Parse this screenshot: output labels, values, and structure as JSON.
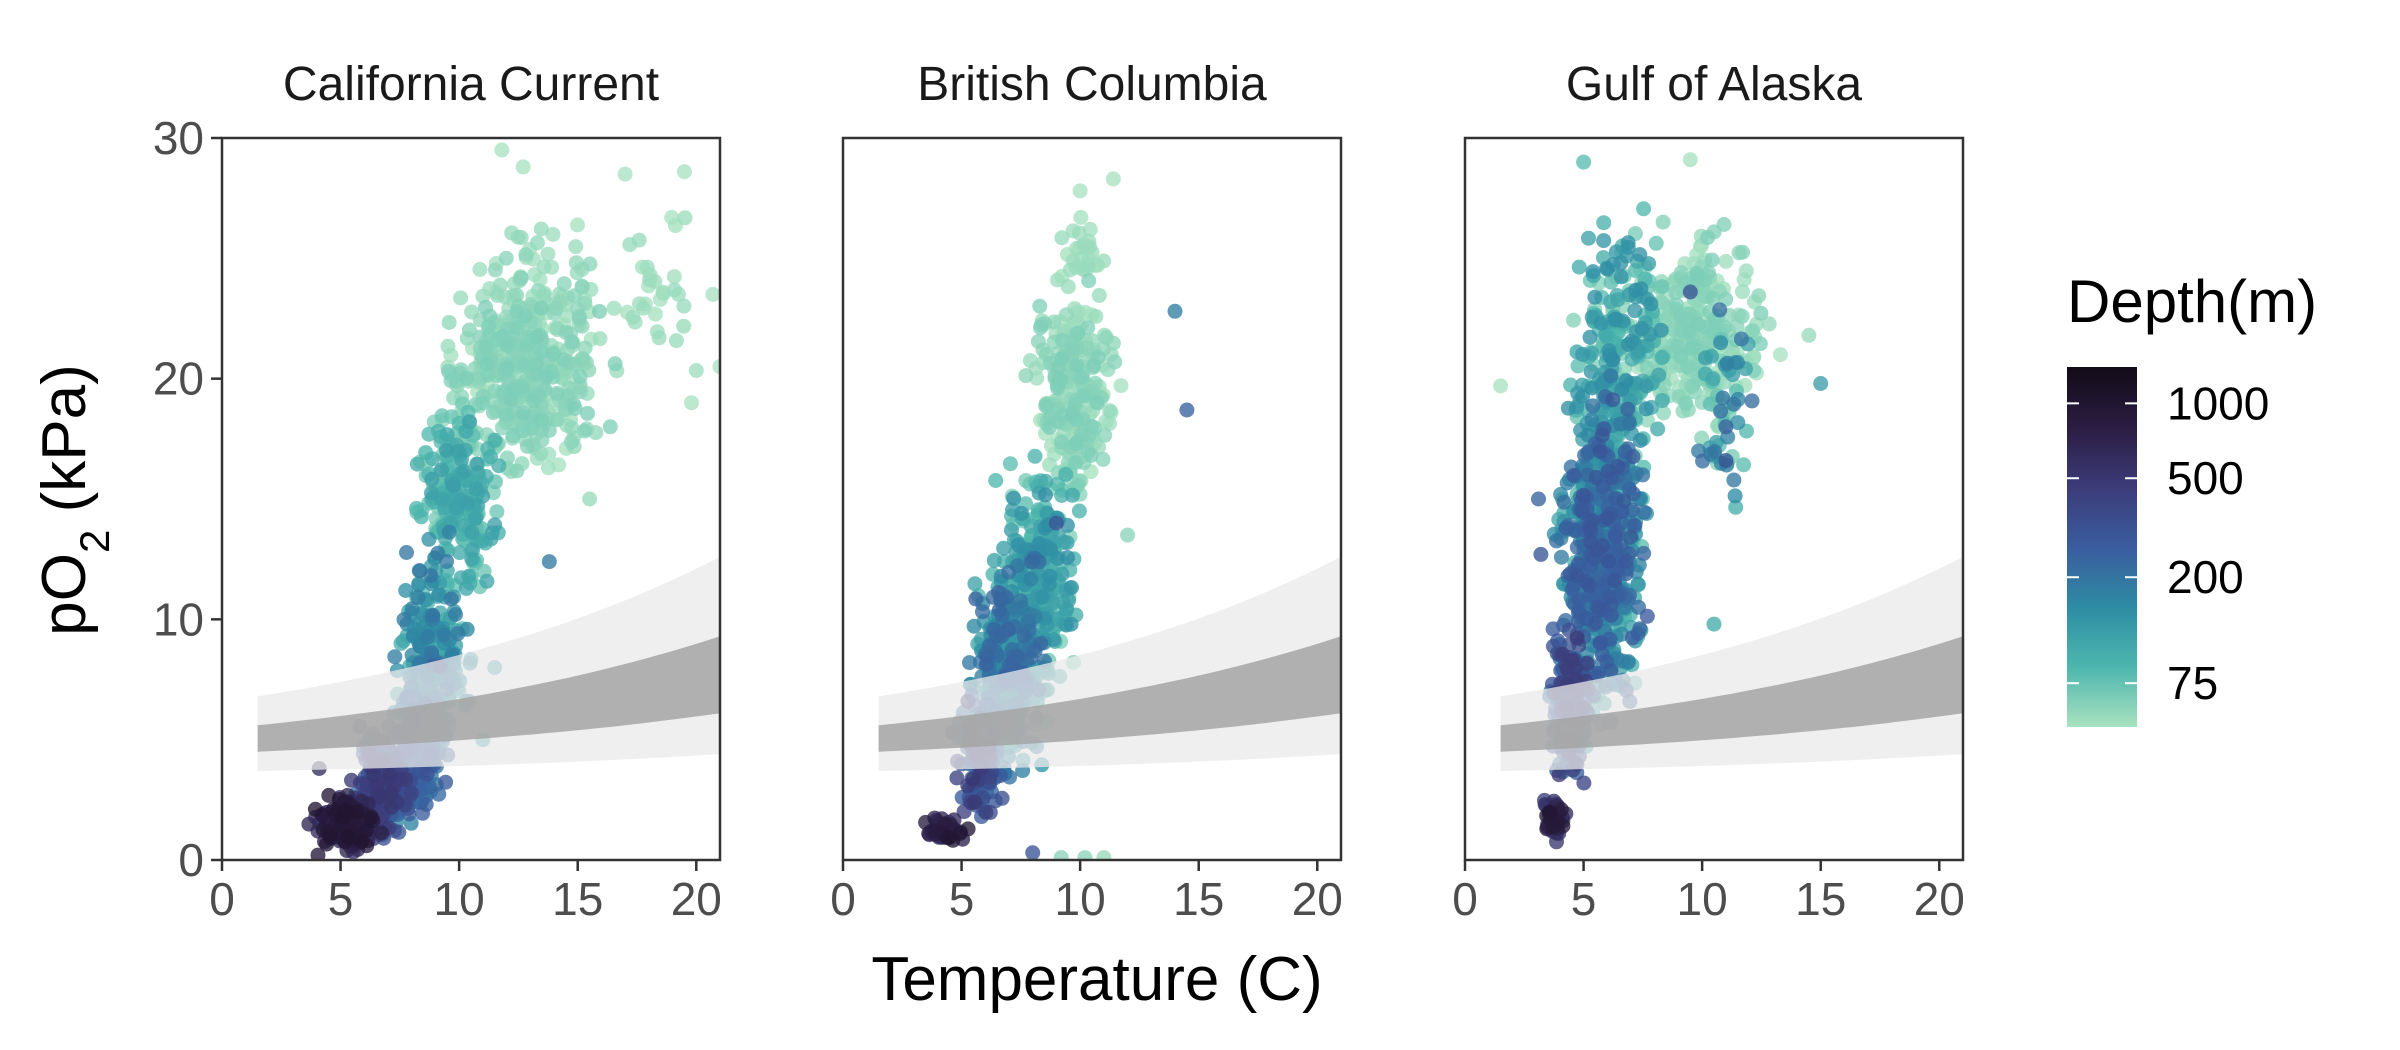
{
  "chart_data": {
    "type": "scatter",
    "panels": [
      {
        "title": "California Current",
        "clusters": [
          {
            "x": [
              3.5,
              7
            ],
            "y": [
              0,
              3
            ],
            "depth": [
              500,
              1000
            ],
            "n": 170
          },
          {
            "x": [
              5,
              8.5
            ],
            "y": [
              0,
              6
            ],
            "depth": [
              200,
              500
            ],
            "n": 200
          },
          {
            "x": [
              6.5,
              10
            ],
            "y": [
              1,
              9
            ],
            "depth": [
              150,
              320
            ],
            "n": 170
          },
          {
            "x": [
              7,
              11
            ],
            "y": [
              3,
              14
            ],
            "depth": [
              75,
              200
            ],
            "n": 230
          },
          {
            "x": [
              8,
              12
            ],
            "y": [
              10,
              20
            ],
            "depth": [
              60,
              120
            ],
            "n": 220
          },
          {
            "x": [
              8.5,
              17
            ],
            "y": [
              15,
              25
            ],
            "depth": [
              50,
              65
            ],
            "n": 380
          },
          {
            "x": [
              9.5,
              17
            ],
            "y": [
              21,
              27
            ],
            "depth": [
              50,
              60
            ],
            "n": 70
          },
          {
            "x": [
              16,
              21
            ],
            "y": [
              19,
              29
            ],
            "depth": [
              50,
              55
            ],
            "n": 30
          }
        ],
        "points": [
          [
            11.8,
            29.5,
            50
          ],
          [
            12.7,
            28.8,
            50
          ],
          [
            17,
            28.5,
            50
          ],
          [
            19.5,
            28.6,
            50
          ],
          [
            20.7,
            23.5,
            50
          ],
          [
            19.8,
            19,
            50
          ],
          [
            21,
            20.5,
            50
          ],
          [
            15.5,
            15,
            55
          ],
          [
            13.8,
            12.4,
            190
          ],
          [
            4.1,
            3.8,
            600
          ],
          [
            11,
            5,
            120
          ],
          [
            11.5,
            8,
            110
          ]
        ]
      },
      {
        "title": "British Columbia",
        "clusters": [
          {
            "x": [
              3,
              5.5
            ],
            "y": [
              0.3,
              2
            ],
            "depth": [
              500,
              1000
            ],
            "n": 40
          },
          {
            "x": [
              4.5,
              7
            ],
            "y": [
              1,
              7
            ],
            "depth": [
              200,
              500
            ],
            "n": 120
          },
          {
            "x": [
              5,
              9
            ],
            "y": [
              2,
              14
            ],
            "depth": [
              80,
              250
            ],
            "n": 380
          },
          {
            "x": [
              6,
              10.5
            ],
            "y": [
              6,
              18
            ],
            "depth": [
              60,
              150
            ],
            "n": 300
          },
          {
            "x": [
              7.5,
              12
            ],
            "y": [
              14,
              25
            ],
            "depth": [
              50,
              65
            ],
            "n": 230
          },
          {
            "x": [
              8.5,
              11.5
            ],
            "y": [
              22,
              28
            ],
            "depth": [
              50,
              55
            ],
            "n": 30
          }
        ],
        "points": [
          [
            14,
            22.8,
            180
          ],
          [
            14.5,
            18.7,
            250
          ],
          [
            12,
            13.5,
            60
          ],
          [
            8,
            0.3,
            300
          ],
          [
            9.2,
            0.1,
            60
          ],
          [
            10.2,
            0.1,
            60
          ],
          [
            11,
            0.1,
            55
          ],
          [
            11.4,
            28.3,
            50
          ],
          [
            10,
            27.8,
            50
          ],
          [
            4.6,
            5.3,
            400
          ],
          [
            9,
            14,
            300
          ]
        ]
      },
      {
        "title": "Gulf of Alaska",
        "clusters": [
          {
            "x": [
              3.1,
              4.5
            ],
            "y": [
              0.5,
              3
            ],
            "depth": [
              400,
              1000
            ],
            "n": 40
          },
          {
            "x": [
              3.3,
              5.5
            ],
            "y": [
              2,
              11
            ],
            "depth": [
              180,
              500
            ],
            "n": 170
          },
          {
            "x": [
              3.5,
              8
            ],
            "y": [
              4,
              22
            ],
            "depth": [
              75,
              300
            ],
            "n": 650
          },
          {
            "x": [
              4,
              9
            ],
            "y": [
              14,
              28
            ],
            "depth": [
              60,
              150
            ],
            "n": 230
          },
          {
            "x": [
              6,
              13.5
            ],
            "y": [
              17,
              27
            ],
            "depth": [
              50,
              65
            ],
            "n": 280
          },
          {
            "x": [
              9,
              13
            ],
            "y": [
              14,
              24
            ],
            "depth": [
              60,
              220
            ],
            "n": 50
          }
        ],
        "points": [
          [
            1.5,
            19.7,
            50
          ],
          [
            9.5,
            29.1,
            50
          ],
          [
            5,
            29,
            80
          ],
          [
            15,
            19.8,
            120
          ],
          [
            14.5,
            21.8,
            55
          ],
          [
            13.3,
            21,
            50
          ],
          [
            9.5,
            23.6,
            300
          ],
          [
            11,
            16.6,
            300
          ],
          [
            10.5,
            9.8,
            100
          ],
          [
            11,
            18,
            250
          ],
          [
            3.2,
            12.7,
            300
          ],
          [
            3.1,
            15,
            250
          ]
        ]
      }
    ],
    "threshold_band": {
      "x_range": [
        1.5,
        21
      ],
      "outer": {
        "lo": [
          3.7,
          4.4
        ],
        "hi": [
          6.8,
          12.6
        ]
      },
      "inner": {
        "lo": [
          4.5,
          6.1
        ],
        "hi": [
          5.6,
          9.3
        ]
      }
    },
    "xlabel": "Temperature (C)",
    "ylabel": "pO2 (kPa)",
    "xlim": [
      0,
      21
    ],
    "ylim": [
      0,
      30
    ],
    "xticks": [
      0,
      5,
      10,
      15,
      20
    ],
    "yticks": [
      0,
      10,
      20,
      30
    ],
    "legend": {
      "title": "Depth(m)",
      "placement": "right",
      "scale": "log",
      "domain": [
        50,
        1400
      ],
      "ticks": [
        1000,
        500,
        200,
        75
      ],
      "colors": [
        "#a8e2c0",
        "#4db6ad",
        "#2e8ca4",
        "#3a5c9e",
        "#3c3b78",
        "#2a1d42",
        "#120b17"
      ]
    },
    "band_colors": {
      "outer": "#e9e9e9",
      "inner": "#a4a4a4"
    }
  }
}
